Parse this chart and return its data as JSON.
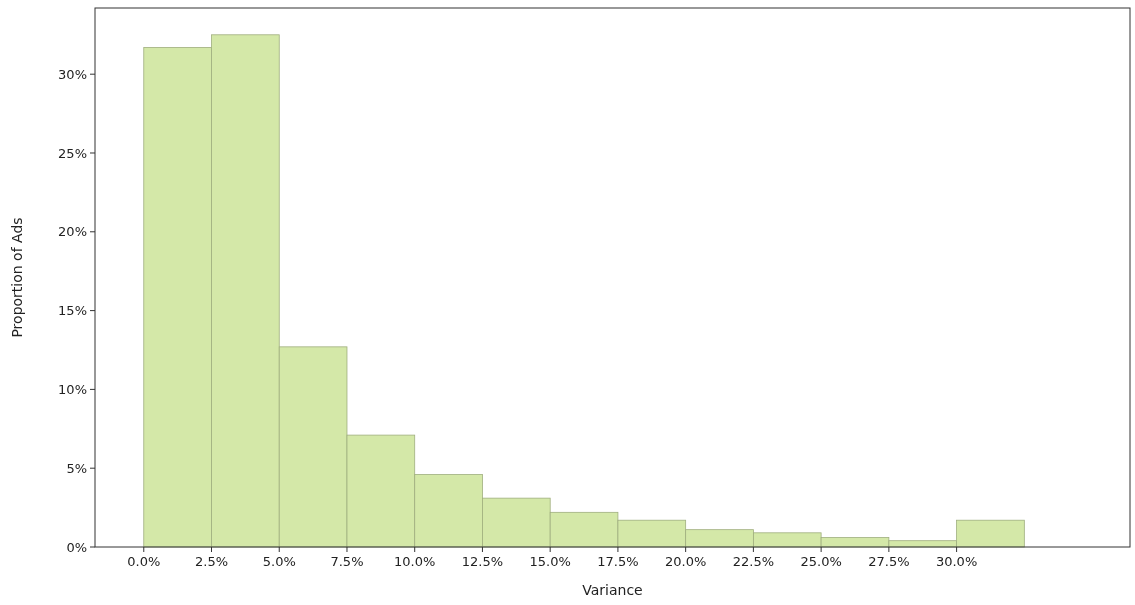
{
  "chart_data": {
    "type": "histogram",
    "xlabel": "Variance",
    "ylabel": "Proportion of Ads",
    "bins": [
      0,
      2.5,
      5,
      7.5,
      10,
      12.5,
      15,
      17.5,
      20,
      22.5,
      25,
      27.5,
      30,
      32.5
    ],
    "values": [
      31.7,
      32.5,
      12.7,
      7.1,
      4.6,
      3.1,
      2.2,
      1.7,
      1.1,
      0.9,
      0.6,
      0.4,
      1.7
    ],
    "color": "#d4e8a8",
    "xlim": [
      -1.8,
      36.4
    ],
    "ylim": [
      0,
      34.2
    ],
    "xticks": [
      {
        "value": 0,
        "label": "0.0%"
      },
      {
        "value": 2.5,
        "label": "2.5%"
      },
      {
        "value": 5,
        "label": "5.0%"
      },
      {
        "value": 7.5,
        "label": "7.5%"
      },
      {
        "value": 10,
        "label": "10.0%"
      },
      {
        "value": 12.5,
        "label": "12.5%"
      },
      {
        "value": 15,
        "label": "15.0%"
      },
      {
        "value": 17.5,
        "label": "17.5%"
      },
      {
        "value": 20,
        "label": "20.0%"
      },
      {
        "value": 22.5,
        "label": "22.5%"
      },
      {
        "value": 25,
        "label": "25.0%"
      },
      {
        "value": 27.5,
        "label": "27.5%"
      },
      {
        "value": 30,
        "label": "30.0%"
      }
    ],
    "yticks": [
      {
        "value": 0,
        "label": "0%"
      },
      {
        "value": 5,
        "label": "5%"
      },
      {
        "value": 10,
        "label": "10%"
      },
      {
        "value": 15,
        "label": "15%"
      },
      {
        "value": 20,
        "label": "20%"
      },
      {
        "value": 25,
        "label": "25%"
      },
      {
        "value": 30,
        "label": "30%"
      }
    ],
    "grid": false
  }
}
